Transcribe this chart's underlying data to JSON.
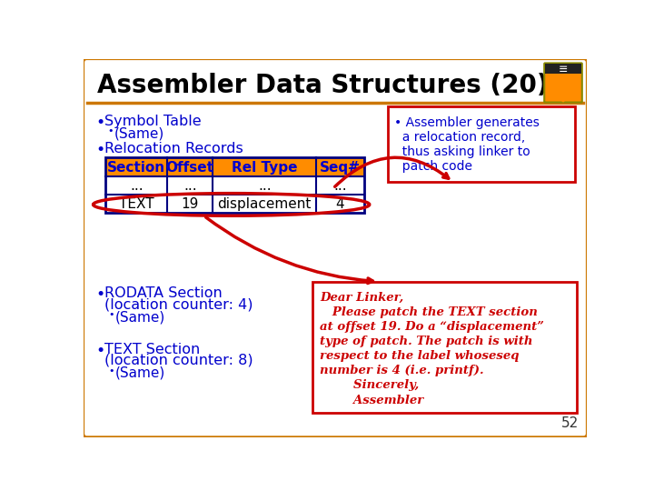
{
  "title": "Assembler Data Structures (20)",
  "title_color": "#000000",
  "title_fontsize": 20,
  "bg_color": "#ffffff",
  "border_color": "#cc7700",
  "bullet_color": "#0000cc",
  "table_header_bg": "#ff8c00",
  "table_header_color": "#0000cc",
  "table_border_color": "#000080",
  "table_cols": [
    "Section",
    "Offset",
    "Rel Type",
    "Seq#"
  ],
  "table_row1": [
    "...",
    "...",
    "...",
    "..."
  ],
  "table_row2": [
    "TEXT",
    "19",
    "displacement",
    "4"
  ],
  "red_box1_text": [
    "• Assembler generates",
    "  a relocation record,",
    "  thus asking linker to",
    "  patch code"
  ],
  "red_box2_lines": [
    "Dear Linker,",
    "   Please patch the TEXT section",
    "at offset 19. Do a “displacement”",
    "type of patch. The patch is with",
    "respect to the label whoseseq",
    "number is 4 (i.e. printf).",
    "        Sincerely,",
    "        Assembler"
  ],
  "red_color": "#cc0000",
  "page_num": "52"
}
